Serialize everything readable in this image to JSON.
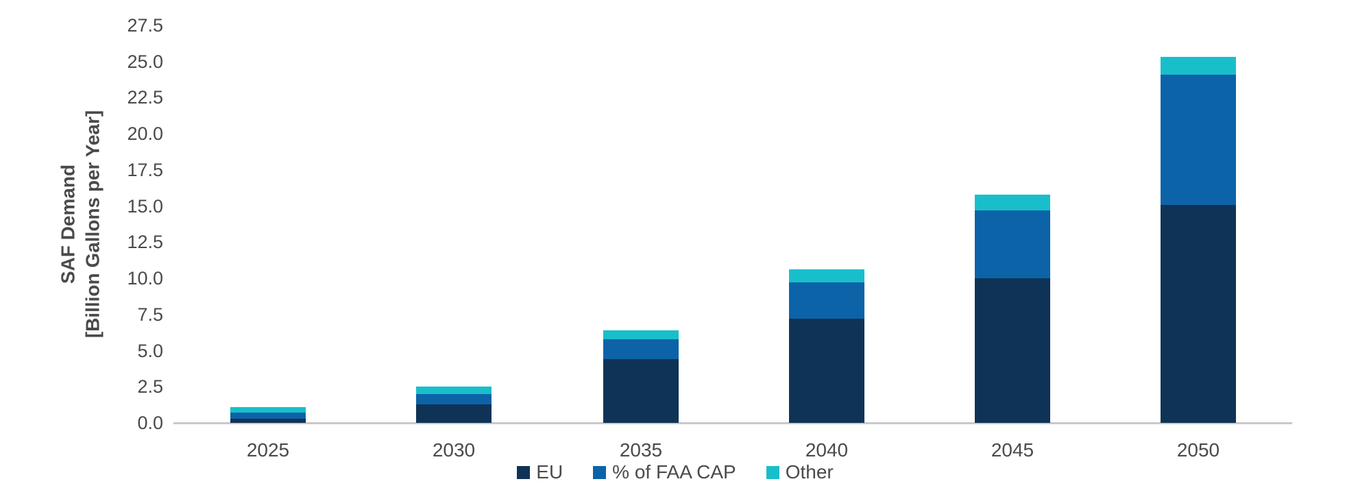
{
  "chart_data": {
    "type": "bar",
    "stacked": true,
    "title": "",
    "categories": [
      "2025",
      "2030",
      "2035",
      "2040",
      "2045",
      "2050"
    ],
    "series": [
      {
        "name": "EU",
        "color": "#0F3356",
        "values": [
          0.3,
          1.3,
          4.4,
          7.2,
          10.0,
          15.1
        ]
      },
      {
        "name": "% of FAA CAP",
        "color": "#0C63A8",
        "values": [
          0.4,
          0.7,
          1.4,
          2.5,
          4.7,
          9.0
        ]
      },
      {
        "name": "Other",
        "color": "#18BFCB",
        "values": [
          0.4,
          0.5,
          0.6,
          0.9,
          1.1,
          1.2
        ]
      }
    ],
    "ylabel_line1": "SAF Demand",
    "ylabel_line2": "[Billion Gallons per Year]",
    "xlabel": "",
    "ylim": [
      0,
      27.5
    ],
    "ytick_step": 2.5,
    "ytick_labels": [
      "0.0",
      "2.5",
      "5.0",
      "7.5",
      "10.0",
      "12.5",
      "15.0",
      "17.5",
      "20.0",
      "22.5",
      "25.0",
      "27.5"
    ],
    "grid": false,
    "legend_position": "bottom-center",
    "axis_line_color": "#c9c9c9",
    "text_color": "#4a4a4a",
    "background_color": "#ffffff"
  }
}
